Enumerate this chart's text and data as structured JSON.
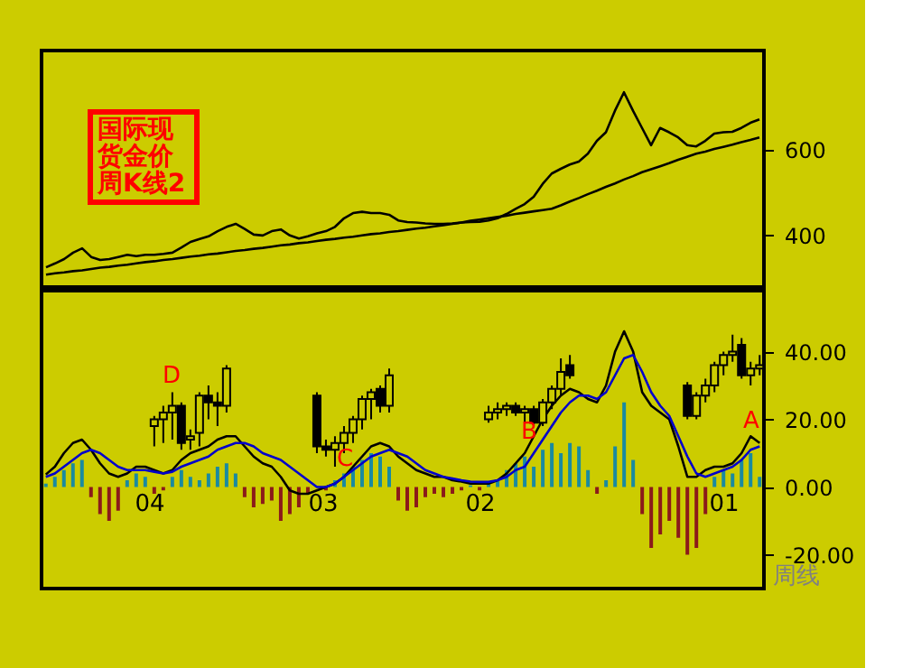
{
  "chart_data": [
    {
      "type": "line",
      "title": "国际现货金价周K线2",
      "categories": [
        null,
        null,
        null,
        null,
        null,
        null,
        null,
        null,
        null,
        null,
        null,
        null,
        null,
        null,
        null,
        null,
        null,
        null,
        null,
        null,
        null,
        null,
        null,
        null,
        null,
        null,
        null,
        null,
        null,
        null,
        null,
        null,
        null,
        null,
        null,
        null,
        null,
        null,
        null,
        null,
        null,
        null,
        null,
        null,
        null,
        null,
        null,
        null,
        null,
        null,
        null,
        null,
        null,
        null,
        null,
        null,
        null,
        null,
        null,
        null,
        null,
        null,
        null,
        null,
        null,
        null,
        null,
        null,
        null,
        null,
        null,
        null,
        null,
        null,
        null,
        null,
        null,
        null,
        null,
        null
      ],
      "series": [
        {
          "color": "#000000",
          "values": [
            326,
            335,
            345,
            360,
            370,
            350,
            343,
            345,
            350,
            355,
            352,
            355,
            355,
            357,
            360,
            372,
            385,
            392,
            398,
            410,
            420,
            427,
            415,
            402,
            400,
            410,
            414,
            400,
            393,
            398,
            405,
            410,
            420,
            440,
            452,
            455,
            452,
            452,
            448,
            435,
            431,
            430,
            428,
            427,
            427,
            428,
            430,
            431,
            432,
            435,
            440,
            450,
            462,
            473,
            490,
            520,
            544,
            555,
            565,
            572,
            590,
            620,
            640,
            690,
            733,
            690,
            650,
            610,
            650,
            640,
            628,
            610,
            607,
            620,
            637,
            640,
            641,
            650,
            662,
            670
          ]
        },
        {
          "color": "#000000",
          "values": [
            309,
            312,
            314,
            317,
            319,
            322,
            325,
            327,
            330,
            332,
            335,
            338,
            340,
            343,
            345,
            348,
            351,
            353,
            356,
            358,
            361,
            364,
            366,
            369,
            371,
            374,
            377,
            379,
            382,
            384,
            387,
            390,
            392,
            395,
            397,
            400,
            403,
            405,
            408,
            410,
            413,
            416,
            418,
            421,
            424,
            427,
            430,
            434,
            437,
            440,
            443,
            446,
            450,
            453,
            456,
            459,
            462,
            470,
            479,
            487,
            496,
            504,
            513,
            521,
            530,
            538,
            547,
            554,
            561,
            568,
            576,
            583,
            590,
            595,
            601,
            606,
            611,
            617,
            622,
            628
          ]
        }
      ],
      "ylim": [
        280,
        830
      ],
      "yticks": [
        400,
        600
      ],
      "tick_labels": "y"
    },
    {
      "type": "bar",
      "categories": [
        null,
        null,
        null,
        null,
        null,
        null,
        null,
        null,
        null,
        null,
        null,
        null,
        null,
        null,
        null,
        null,
        null,
        null,
        null,
        null,
        null,
        null,
        null,
        null,
        null,
        null,
        null,
        null,
        null,
        null,
        null,
        null,
        null,
        null,
        null,
        null,
        null,
        null,
        null,
        null,
        null,
        null,
        null,
        null,
        null,
        null,
        null,
        null,
        null,
        null,
        null,
        null,
        null,
        null,
        null,
        null,
        null,
        null,
        null,
        null,
        null,
        null,
        null,
        null,
        null,
        null,
        null,
        null,
        null,
        null,
        null,
        null,
        null,
        null,
        null,
        null,
        null,
        null,
        null,
        null
      ],
      "series": [
        {
          "type": "bar",
          "values": [
            1,
            3,
            5,
            7,
            8,
            -3,
            -8,
            -10,
            -7,
            2,
            4,
            3,
            -2,
            -1,
            3,
            5,
            3,
            2,
            4,
            6,
            7,
            4,
            -3,
            -6,
            -5,
            -4,
            -10,
            -8,
            -6,
            -2,
            null,
            -1,
            2,
            4,
            6,
            8,
            10,
            9,
            6,
            -4,
            -7,
            -6,
            -3,
            -2,
            -3,
            -2,
            -1,
            0.5,
            -1,
            1,
            2,
            5,
            7,
            9,
            6,
            11,
            13,
            10,
            13,
            12,
            5,
            -2,
            2,
            12,
            25,
            8,
            -8,
            -18,
            -14,
            -10,
            -15,
            -20,
            -18,
            -8,
            3,
            5,
            4,
            8,
            10,
            3
          ],
          "colors": [
            "#1a8aa0",
            "#1a8aa0",
            "#1a8aa0",
            "#1a8aa0",
            "#1a8aa0",
            "#8b1a1a",
            "#8b1a1a",
            "#8b1a1a",
            "#8b1a1a",
            "#1a8aa0",
            "#1a8aa0",
            "#1a8aa0",
            "#8b1a1a",
            "#8b1a1a",
            "#1a8aa0",
            "#1a8aa0",
            "#1a8aa0",
            "#1a8aa0",
            "#1a8aa0",
            "#1a8aa0",
            "#1a8aa0",
            "#1a8aa0",
            "#8b1a1a",
            "#8b1a1a",
            "#8b1a1a",
            "#8b1a1a",
            "#8b1a1a",
            "#8b1a1a",
            "#8b1a1a",
            "#8b1a1a",
            "#1a8aa0",
            "#8b1a1a",
            "#1a8aa0",
            "#1a8aa0",
            "#1a8aa0",
            "#1a8aa0",
            "#1a8aa0",
            "#1a8aa0",
            "#1a8aa0",
            "#8b1a1a",
            "#8b1a1a",
            "#8b1a1a",
            "#8b1a1a",
            "#8b1a1a",
            "#8b1a1a",
            "#8b1a1a",
            "#8b1a1a",
            "#1a8aa0",
            "#8b1a1a",
            "#1a8aa0",
            "#1a8aa0",
            "#1a8aa0",
            "#1a8aa0",
            "#1a8aa0",
            "#1a8aa0",
            "#1a8aa0",
            "#1a8aa0",
            "#1a8aa0",
            "#1a8aa0",
            "#1a8aa0",
            "#1a8aa0",
            "#8b1a1a",
            "#1a8aa0",
            "#1a8aa0",
            "#1a8aa0",
            "#1a8aa0",
            "#8b1a1a",
            "#8b1a1a",
            "#8b1a1a",
            "#8b1a1a",
            "#8b1a1a",
            "#8b1a1a",
            "#8b1a1a",
            "#8b1a1a",
            "#1a8aa0",
            "#1a8aa0",
            "#1a8aa0",
            "#1a8aa0",
            "#1a8aa0",
            "#1a8aa0"
          ]
        },
        {
          "type": "line",
          "color": "#000000",
          "values": [
            3.7,
            6,
            10,
            13,
            14,
            11,
            7,
            4,
            3,
            4,
            6,
            6,
            5,
            4,
            5,
            8,
            10,
            11,
            12,
            14,
            15,
            15,
            12,
            9,
            7,
            6,
            3,
            -1,
            -2,
            -2,
            -1,
            0,
            1,
            3,
            6,
            9,
            12,
            13,
            12,
            9,
            7,
            5,
            4,
            3,
            3,
            2,
            1.6,
            1,
            1,
            1,
            2,
            4,
            7,
            10,
            15,
            20,
            24,
            27,
            29,
            28,
            26,
            25,
            30,
            40,
            46,
            40,
            28,
            24,
            22,
            20,
            12,
            3,
            3,
            5,
            6,
            6,
            7,
            10,
            15,
            13
          ]
        },
        {
          "type": "line",
          "color": "#0000cc",
          "values": [
            3,
            4,
            6,
            8,
            10,
            11,
            10,
            8,
            6,
            5,
            5,
            5,
            4.5,
            4,
            4.5,
            6,
            7,
            8,
            9,
            11,
            12,
            13,
            13,
            12,
            10,
            9,
            8,
            6,
            4,
            2,
            0,
            0,
            1,
            3,
            5,
            7,
            9,
            10,
            11,
            10,
            9,
            7,
            5,
            4,
            3,
            2.5,
            2,
            1.6,
            1.5,
            1.5,
            2,
            3,
            5,
            6,
            10,
            14,
            18,
            22,
            25,
            27,
            27,
            26,
            28,
            33,
            38,
            39,
            34,
            28,
            24,
            21,
            15,
            9,
            4,
            3,
            4,
            5,
            6,
            8,
            11,
            12
          ]
        },
        {
          "type": "candlestick",
          "color": "#000000",
          "ohlc": [
            null,
            null,
            null,
            null,
            null,
            null,
            null,
            null,
            null,
            null,
            null,
            null,
            [
              18,
              21,
              12,
              20
            ],
            [
              20,
              24,
              13,
              22
            ],
            [
              22,
              28,
              14,
              24
            ],
            [
              24,
              25,
              11,
              13
            ],
            [
              14,
              17,
              11,
              15
            ],
            [
              16,
              28,
              12,
              27
            ],
            [
              27,
              30,
              20,
              25
            ],
            [
              25,
              28,
              18,
              24
            ],
            [
              24,
              36,
              22,
              35
            ],
            null,
            null,
            null,
            null,
            null,
            null,
            null,
            null,
            null,
            [
              27,
              28,
              10,
              12
            ],
            [
              12,
              14,
              9,
              11
            ],
            [
              11,
              15,
              6,
              13
            ],
            [
              13,
              18,
              10,
              16
            ],
            [
              16,
              21,
              13,
              20
            ],
            [
              20,
              27,
              17,
              26
            ],
            [
              26,
              29,
              20,
              28
            ],
            [
              29,
              30,
              22,
              24
            ],
            [
              24,
              35,
              22,
              33
            ],
            null,
            null,
            null,
            null,
            null,
            null,
            null,
            null,
            null,
            null,
            [
              20,
              24,
              19,
              22
            ],
            [
              22,
              25,
              20,
              23
            ],
            [
              23,
              25,
              21,
              24
            ],
            [
              24,
              25,
              21,
              22
            ],
            [
              22,
              24,
              19,
              23
            ],
            [
              23,
              24,
              18,
              19
            ],
            [
              19,
              26,
              18,
              25
            ],
            [
              25,
              30,
              23,
              29
            ],
            [
              29,
              38,
              27,
              34
            ],
            [
              36,
              39,
              32,
              33
            ],
            null,
            null,
            null,
            null,
            null,
            null,
            null,
            null,
            null,
            null,
            null,
            null,
            [
              30,
              31,
              20,
              21
            ],
            [
              21,
              28,
              20,
              27
            ],
            [
              27,
              32,
              25,
              30
            ],
            [
              30,
              37,
              28,
              36
            ],
            [
              36,
              40,
              33,
              39
            ],
            [
              39,
              45,
              37,
              40
            ],
            [
              42,
              44,
              32,
              33
            ],
            [
              33,
              37,
              30,
              35
            ],
            [
              35,
              39,
              33,
              36
            ]
          ]
        }
      ],
      "ylim": [
        -30,
        58
      ],
      "yticks": [
        {
          "value": -20,
          "label": "-20.00"
        },
        {
          "value": 0,
          "label": "0.00"
        },
        {
          "value": 20,
          "label": "20.00"
        },
        {
          "value": 40,
          "label": "40.00"
        }
      ],
      "tick_labels": "y",
      "annotations": [
        "04",
        "03",
        "02",
        "01",
        "D",
        "C",
        "B",
        "A",
        "周线"
      ]
    }
  ]
}
